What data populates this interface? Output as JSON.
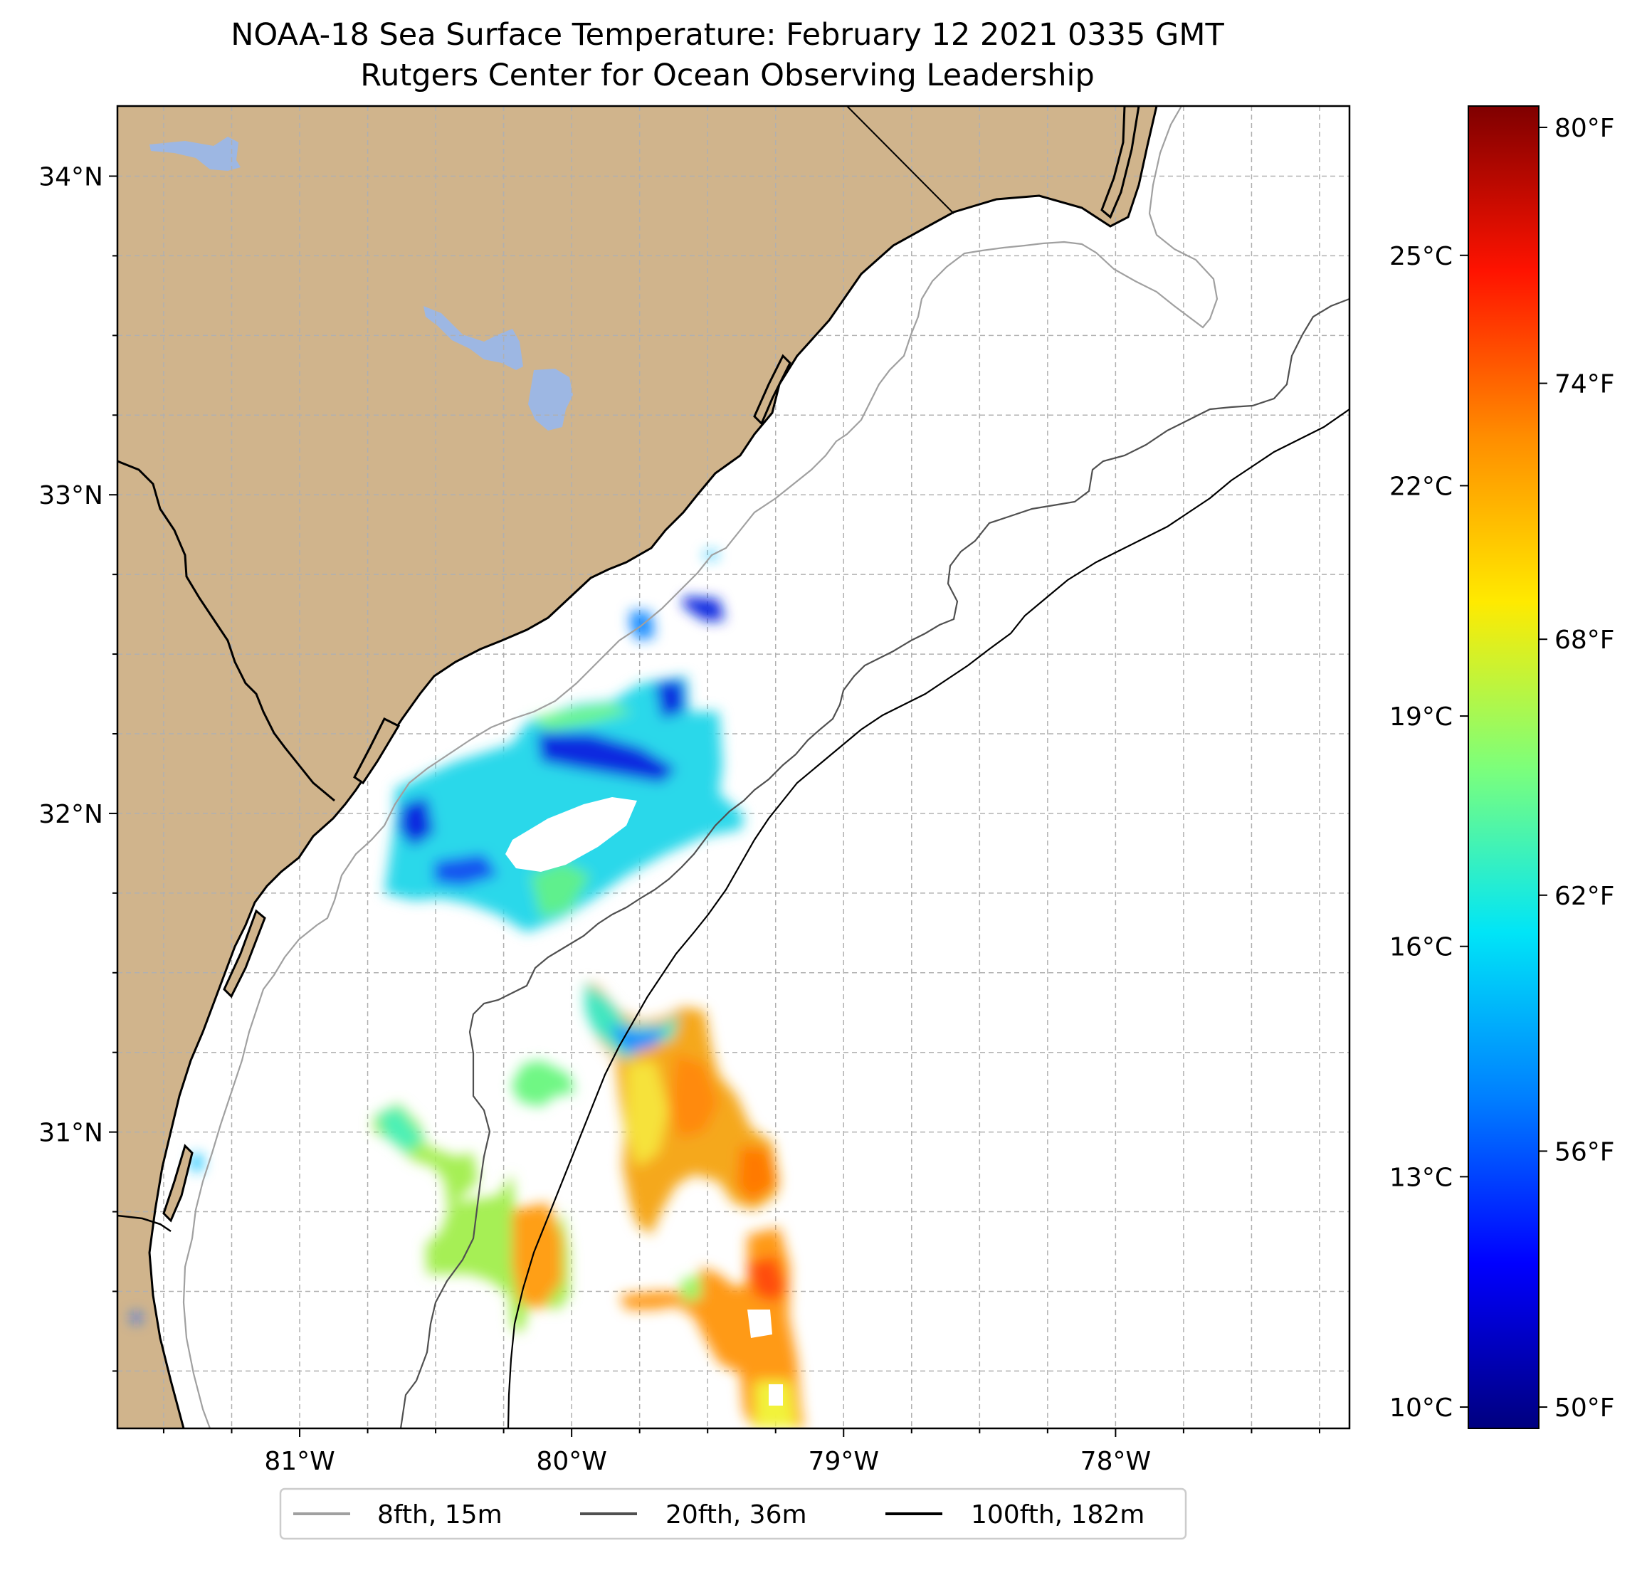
{
  "title": {
    "line1": "NOAA-18 Sea Surface Temperature: February 12 2021 0335 GMT",
    "line2": "Rutgers Center for Ocean Observing Leadership"
  },
  "map": {
    "lon_range": [
      -81.67,
      -77.14
    ],
    "lat_range": [
      30.07,
      34.22
    ],
    "lon_ticks": [
      {
        "value": -81,
        "label": "81°W"
      },
      {
        "value": -80,
        "label": "80°W"
      },
      {
        "value": -79,
        "label": "79°W"
      },
      {
        "value": -78,
        "label": "78°W"
      }
    ],
    "lat_ticks": [
      {
        "value": 34,
        "label": "34°N"
      },
      {
        "value": 33,
        "label": "33°N"
      },
      {
        "value": 32,
        "label": "32°N"
      },
      {
        "value": 31,
        "label": "31°N"
      }
    ],
    "colors": {
      "land": "#d0b48c",
      "lake": "#9db7e3",
      "grid": "#b0b0b0",
      "isobath_8fth": "#a0a0a0",
      "isobath_20fth": "#505050",
      "isobath_100fth": "#000000"
    }
  },
  "colorbar": {
    "min_f": 49.5,
    "max_f": 80.5,
    "celsius_ticks": [
      {
        "value_c": 25,
        "label": "25°C"
      },
      {
        "value_c": 22,
        "label": "22°C"
      },
      {
        "value_c": 19,
        "label": "19°C"
      },
      {
        "value_c": 16,
        "label": "16°C"
      },
      {
        "value_c": 13,
        "label": "13°C"
      },
      {
        "value_c": 10,
        "label": "10°C"
      }
    ],
    "fahrenheit_ticks": [
      {
        "value_f": 80,
        "label": "80°F"
      },
      {
        "value_f": 74,
        "label": "74°F"
      },
      {
        "value_f": 68,
        "label": "68°F"
      },
      {
        "value_f": 62,
        "label": "62°F"
      },
      {
        "value_f": 56,
        "label": "56°F"
      },
      {
        "value_f": 50,
        "label": "50°F"
      }
    ],
    "stops": [
      "#00007f",
      "#0000ff",
      "#007fff",
      "#00e5f7",
      "#7dff7a",
      "#ffea00",
      "#ff8d00",
      "#ff1300",
      "#7f0000"
    ]
  },
  "legend": {
    "items": [
      {
        "label": "8fth, 15m",
        "color": "#a0a0a0"
      },
      {
        "label": "20fth, 36m",
        "color": "#505050"
      },
      {
        "label": "100fth, 182m",
        "color": "#000000"
      }
    ]
  }
}
